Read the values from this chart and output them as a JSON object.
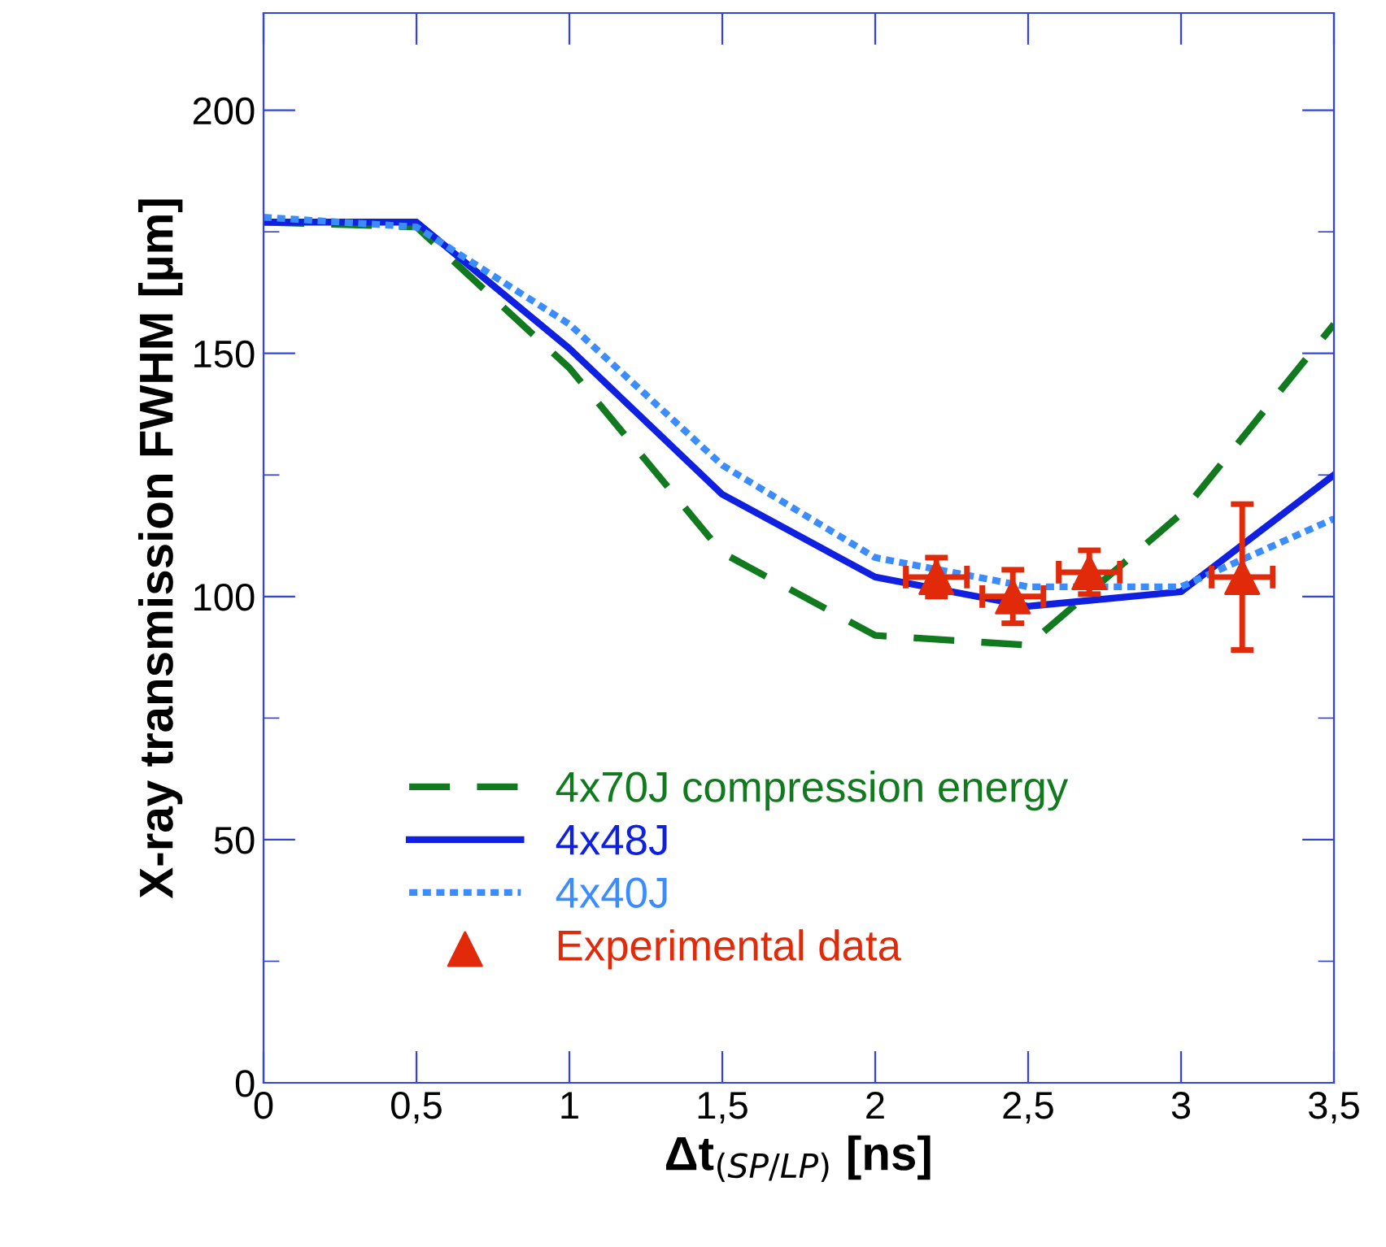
{
  "chart_data": {
    "type": "line",
    "xlabel": "Δt$_{(SP/LP)}$ [ns]",
    "ylabel": "X-ray transmission FWHM [µm]",
    "x": [
      0,
      0.5,
      1,
      1.5,
      2,
      2.5,
      3,
      3.5
    ],
    "xlim": [
      0,
      3.5
    ],
    "xticks": [
      0,
      {
        "value": 0.5,
        "label": "0,5"
      },
      1,
      {
        "value": 1.5,
        "label": "1,5"
      },
      2,
      {
        "value": 2.5,
        "label": "2,5"
      },
      3,
      {
        "value": 3.5,
        "label": "3,5"
      }
    ],
    "ylim": [
      0,
      220
    ],
    "yticks": [
      0,
      50,
      100,
      150,
      200
    ],
    "grid": false,
    "legend": "bottom left",
    "series": [
      {
        "name": "4x70J compression energy",
        "color": "#117a1e",
        "line_style": "dashed",
        "values": [
          177,
          176,
          147,
          109,
          92,
          90,
          117,
          156
        ]
      },
      {
        "name": "4x48J",
        "color": "#0f20e0",
        "line_style": "solid",
        "values": [
          177,
          177,
          151,
          121,
          104,
          98,
          101,
          125
        ]
      },
      {
        "name": "4x40J",
        "color": "#3a8cff",
        "line_style": "dotted",
        "values": [
          178,
          176,
          156,
          127,
          108,
          102,
          102,
          116
        ]
      },
      {
        "name": "Experimental data",
        "type": "scatter",
        "marker": "triangle",
        "color": "#e02a0a",
        "x": [
          2.2,
          2.45,
          2.7,
          3.2
        ],
        "values": [
          104,
          100,
          105,
          104
        ],
        "errors": [
          4,
          5.5,
          4.5,
          15
        ],
        "xerrors": [
          0.1,
          0.1,
          0.1,
          0.1
        ]
      }
    ]
  }
}
